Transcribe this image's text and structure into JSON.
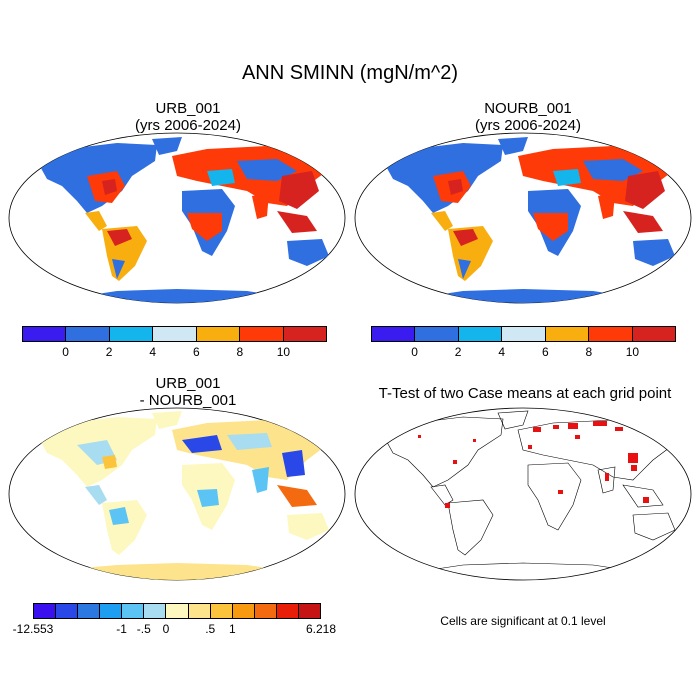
{
  "title": "ANN SMINN (mgN/m^2)",
  "panels": {
    "top_left": {
      "line1": "URB_001",
      "line2": "(yrs 2006-2024)"
    },
    "top_right": {
      "line1": "NOURB_001",
      "line2": "(yrs 2006-2024)"
    },
    "bottom_left": {
      "line1": "URB_001",
      "line2": "- NOURB_001"
    },
    "bottom_right": {
      "line1": "T-Test of two Case means at each grid point"
    }
  },
  "colorbar_abs": {
    "colors": [
      "#3a1cf0",
      "#2f6fe0",
      "#14b4ec",
      "#cfe8f4",
      "#f9ae10",
      "#fe3a08",
      "#d7231f"
    ],
    "tick_labels": [
      "0",
      "2",
      "4",
      "6",
      "8",
      "10"
    ]
  },
  "colorbar_diff": {
    "colors": [
      "#3a10ee",
      "#2a48e8",
      "#2a78e0",
      "#1e9ef0",
      "#5cc4f4",
      "#a8dcf0",
      "#fdf8c0",
      "#fde48c",
      "#fcc43c",
      "#f89a10",
      "#f46a10",
      "#e81e08",
      "#c61414"
    ],
    "tick_labels": [
      "-12.553",
      "-1",
      "-.5",
      "0",
      ".5",
      "1",
      "6.218"
    ]
  },
  "significance_note": "Cells are significant at 0.1 level",
  "significance_color": "#e81010"
}
